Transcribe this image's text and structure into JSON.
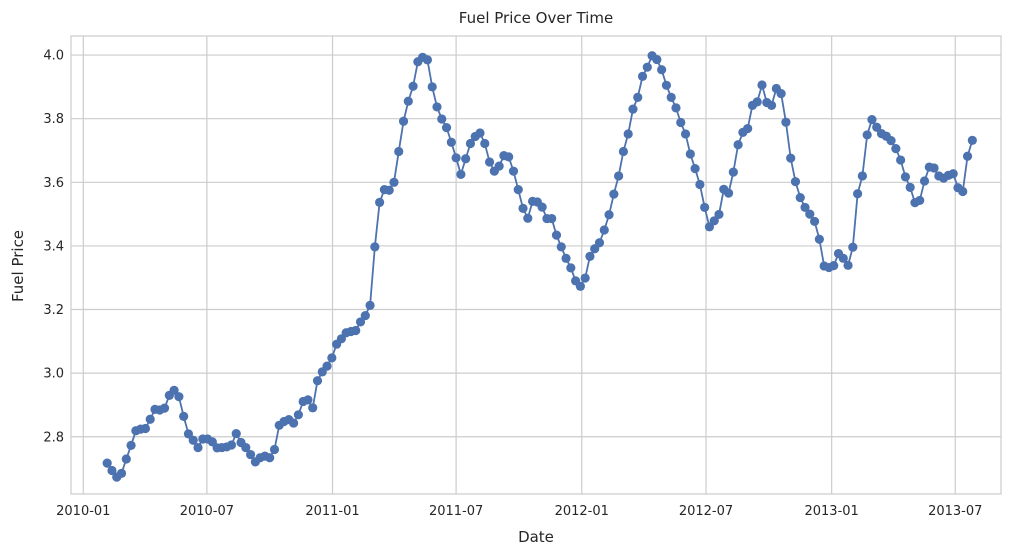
{
  "chart_data": {
    "type": "line",
    "title": "Fuel Price Over Time",
    "xlabel": "Date",
    "ylabel": "Fuel Price",
    "xlim": [
      "2009-12-14",
      "2013-09-06"
    ],
    "ylim": [
      2.62,
      4.06
    ],
    "grid": true,
    "marker": "circle",
    "colors": {
      "line": "#4c72b0",
      "grid": "#cccccc",
      "frame": "#cccccc",
      "text": "#262626"
    },
    "x_ticks": [
      {
        "date": "2010-01-01",
        "label": "2010-01"
      },
      {
        "date": "2010-07-01",
        "label": "2010-07"
      },
      {
        "date": "2011-01-01",
        "label": "2011-01"
      },
      {
        "date": "2011-07-01",
        "label": "2011-07"
      },
      {
        "date": "2012-01-01",
        "label": "2012-01"
      },
      {
        "date": "2012-07-01",
        "label": "2012-07"
      },
      {
        "date": "2013-01-01",
        "label": "2013-01"
      },
      {
        "date": "2013-07-01",
        "label": "2013-07"
      }
    ],
    "y_ticks": [
      {
        "value": 2.8,
        "label": "2.8"
      },
      {
        "value": 3.0,
        "label": "3.0"
      },
      {
        "value": 3.2,
        "label": "3.2"
      },
      {
        "value": 3.4,
        "label": "3.4"
      },
      {
        "value": 3.6,
        "label": "3.6"
      },
      {
        "value": 3.8,
        "label": "3.8"
      },
      {
        "value": 4.0,
        "label": "4.0"
      }
    ],
    "series": [
      {
        "start_date": "2010-02-05",
        "interval_days": 7,
        "values": [
          2.717,
          2.694,
          2.673,
          2.685,
          2.73,
          2.773,
          2.819,
          2.824,
          2.826,
          2.855,
          2.886,
          2.884,
          2.89,
          2.93,
          2.946,
          2.926,
          2.864,
          2.809,
          2.789,
          2.766,
          2.793,
          2.793,
          2.784,
          2.765,
          2.766,
          2.768,
          2.774,
          2.81,
          2.782,
          2.766,
          2.744,
          2.721,
          2.734,
          2.739,
          2.734,
          2.76,
          2.836,
          2.848,
          2.854,
          2.843,
          2.869,
          2.911,
          2.916,
          2.891,
          2.976,
          3.004,
          3.022,
          3.048,
          3.091,
          3.108,
          3.127,
          3.131,
          3.134,
          3.161,
          3.181,
          3.213,
          3.397,
          3.537,
          3.577,
          3.575,
          3.6,
          3.697,
          3.792,
          3.855,
          3.902,
          3.979,
          3.993,
          3.985,
          3.9,
          3.837,
          3.799,
          3.772,
          3.726,
          3.677,
          3.625,
          3.674,
          3.722,
          3.744,
          3.755,
          3.722,
          3.664,
          3.635,
          3.651,
          3.684,
          3.68,
          3.635,
          3.577,
          3.518,
          3.487,
          3.54,
          3.538,
          3.522,
          3.486,
          3.486,
          3.434,
          3.397,
          3.361,
          3.331,
          3.29,
          3.273,
          3.299,
          3.367,
          3.391,
          3.41,
          3.45,
          3.498,
          3.563,
          3.62,
          3.697,
          3.752,
          3.83,
          3.867,
          3.933,
          3.962,
          3.998,
          3.986,
          3.954,
          3.905,
          3.867,
          3.834,
          3.788,
          3.752,
          3.689,
          3.643,
          3.593,
          3.521,
          3.46,
          3.479,
          3.499,
          3.578,
          3.566,
          3.632,
          3.718,
          3.757,
          3.769,
          3.842,
          3.853,
          3.906,
          3.851,
          3.842,
          3.895,
          3.879,
          3.789,
          3.676,
          3.602,
          3.552,
          3.521,
          3.5,
          3.477,
          3.421,
          3.337,
          3.332,
          3.338,
          3.376,
          3.361,
          3.339,
          3.396,
          3.564,
          3.62,
          3.749,
          3.797,
          3.773,
          3.753,
          3.745,
          3.731,
          3.706,
          3.67,
          3.617,
          3.584,
          3.536,
          3.543,
          3.604,
          3.648,
          3.645,
          3.62,
          3.613,
          3.622,
          3.627,
          3.583,
          3.571,
          3.682,
          3.732
        ]
      }
    ]
  }
}
